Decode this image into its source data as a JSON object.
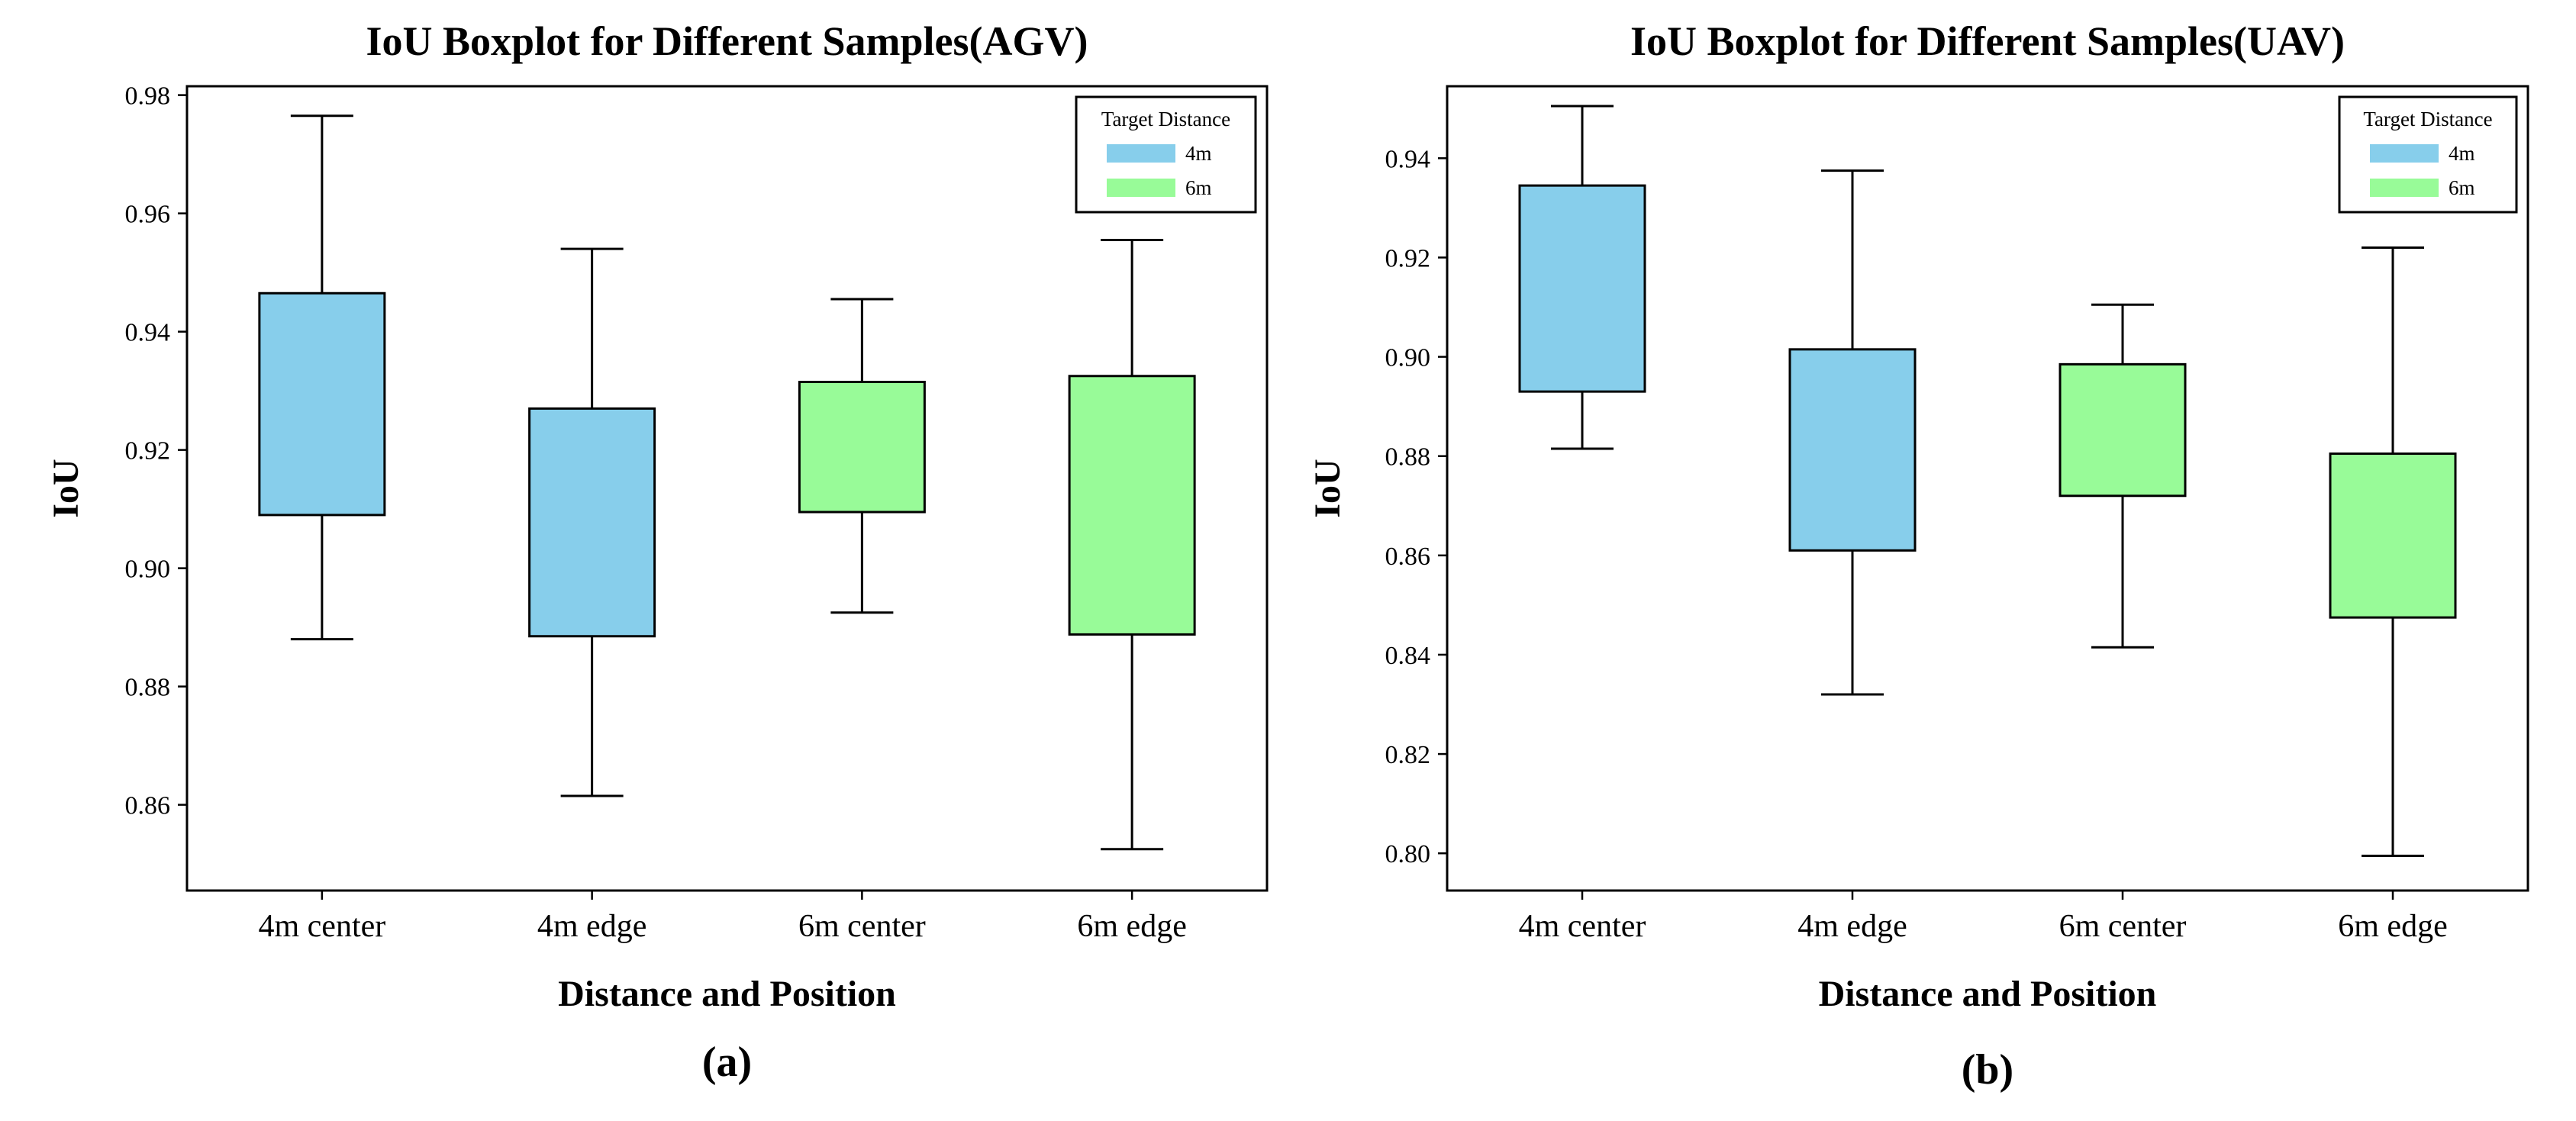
{
  "chart_data": [
    {
      "type": "box",
      "title": "IoU Boxplot for Different Samples(AGV)",
      "xlabel": "Distance and Position",
      "ylabel": "IoU",
      "caption": "(a)",
      "ylim": [
        0.8455,
        0.9815
      ],
      "yticks": [
        "0.86",
        "0.88",
        "0.90",
        "0.92",
        "0.94",
        "0.96",
        "0.98"
      ],
      "categories": [
        "4m center",
        "4m edge",
        "6m center",
        "6m edge"
      ],
      "boxes": [
        {
          "label": "4m center",
          "group": "4m",
          "whisker_low": 0.888,
          "q1": 0.909,
          "q3": 0.9465,
          "whisker_high": 0.9765
        },
        {
          "label": "4m edge",
          "group": "4m",
          "whisker_low": 0.8615,
          "q1": 0.8885,
          "q3": 0.927,
          "whisker_high": 0.954
        },
        {
          "label": "6m center",
          "group": "6m",
          "whisker_low": 0.8925,
          "q1": 0.9095,
          "q3": 0.9315,
          "whisker_high": 0.9455
        },
        {
          "label": "6m edge",
          "group": "6m",
          "whisker_low": 0.8525,
          "q1": 0.8888,
          "q3": 0.9325,
          "whisker_high": 0.9555
        }
      ],
      "legend": {
        "title": "Target Distance",
        "entries": [
          {
            "label": "4m",
            "color": "#87CEEB"
          },
          {
            "label": "6m",
            "color": "#98FB98"
          }
        ],
        "position": "top-right"
      }
    },
    {
      "type": "box",
      "title": "IoU Boxplot for Different Samples(UAV)",
      "xlabel": "Distance and Position",
      "ylabel": "IoU",
      "caption": "(b)",
      "ylim": [
        0.7925,
        0.9545
      ],
      "yticks": [
        "0.80",
        "0.82",
        "0.84",
        "0.86",
        "0.88",
        "0.90",
        "0.92",
        "0.94"
      ],
      "categories": [
        "4m center",
        "4m edge",
        "6m center",
        "6m edge"
      ],
      "boxes": [
        {
          "label": "4m center",
          "group": "4m",
          "whisker_low": 0.8815,
          "q1": 0.893,
          "q3": 0.9345,
          "whisker_high": 0.9505
        },
        {
          "label": "4m edge",
          "group": "4m",
          "whisker_low": 0.832,
          "q1": 0.861,
          "q3": 0.9015,
          "whisker_high": 0.9375
        },
        {
          "label": "6m center",
          "group": "6m",
          "whisker_low": 0.8415,
          "q1": 0.872,
          "q3": 0.8985,
          "whisker_high": 0.9105
        },
        {
          "label": "6m edge",
          "group": "6m",
          "whisker_low": 0.7995,
          "q1": 0.8475,
          "q3": 0.8805,
          "whisker_high": 0.922
        }
      ],
      "legend": {
        "title": "Target Distance",
        "entries": [
          {
            "label": "4m",
            "color": "#87CEEB"
          },
          {
            "label": "6m",
            "color": "#98FB98"
          }
        ],
        "position": "top-right"
      }
    }
  ]
}
